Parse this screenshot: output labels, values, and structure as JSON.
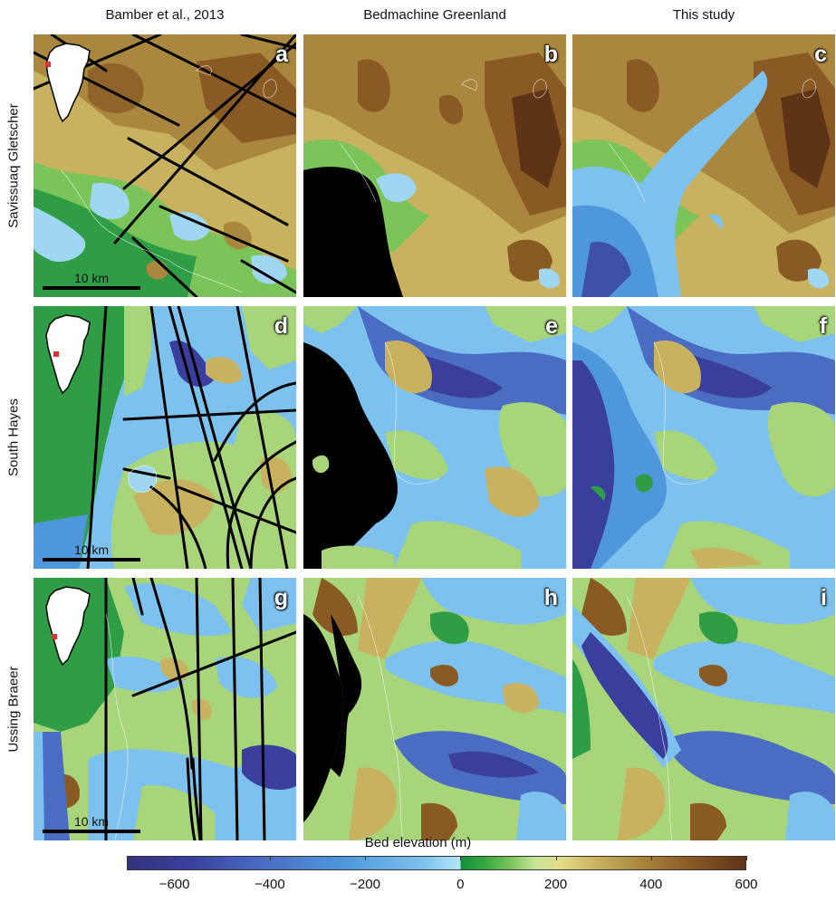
{
  "columns": [
    "Bamber et al., 2013",
    "Bedmachine Greenland",
    "This study"
  ],
  "rows": [
    "Savissuaq Gletscher",
    "South Hayes",
    "Ussing Braeer"
  ],
  "panel_labels": [
    "a",
    "b",
    "c",
    "d",
    "e",
    "f",
    "g",
    "h",
    "i"
  ],
  "scale_bar": "10 km",
  "colorbar": {
    "title": "Bed elevation (m)",
    "ticks": [
      "−600",
      "−400",
      "−200",
      "0",
      "200",
      "400",
      "600"
    ],
    "range": [
      -700,
      600
    ]
  },
  "colors": {
    "deep": "#3a3f9e",
    "mid_blue": "#4f97dd",
    "light_blue": "#9fd6f2",
    "green": "#2e9d45",
    "light_green": "#a8d57a",
    "tan": "#c8b15f",
    "brown": "#8a5a25",
    "dark_brown": "#5e3416",
    "ocean_mask": "#000000",
    "flight_line": "#000000",
    "inset_marker": "#e03030"
  },
  "icons": [
    "greenland-inset-icon",
    "location-marker-icon"
  ]
}
